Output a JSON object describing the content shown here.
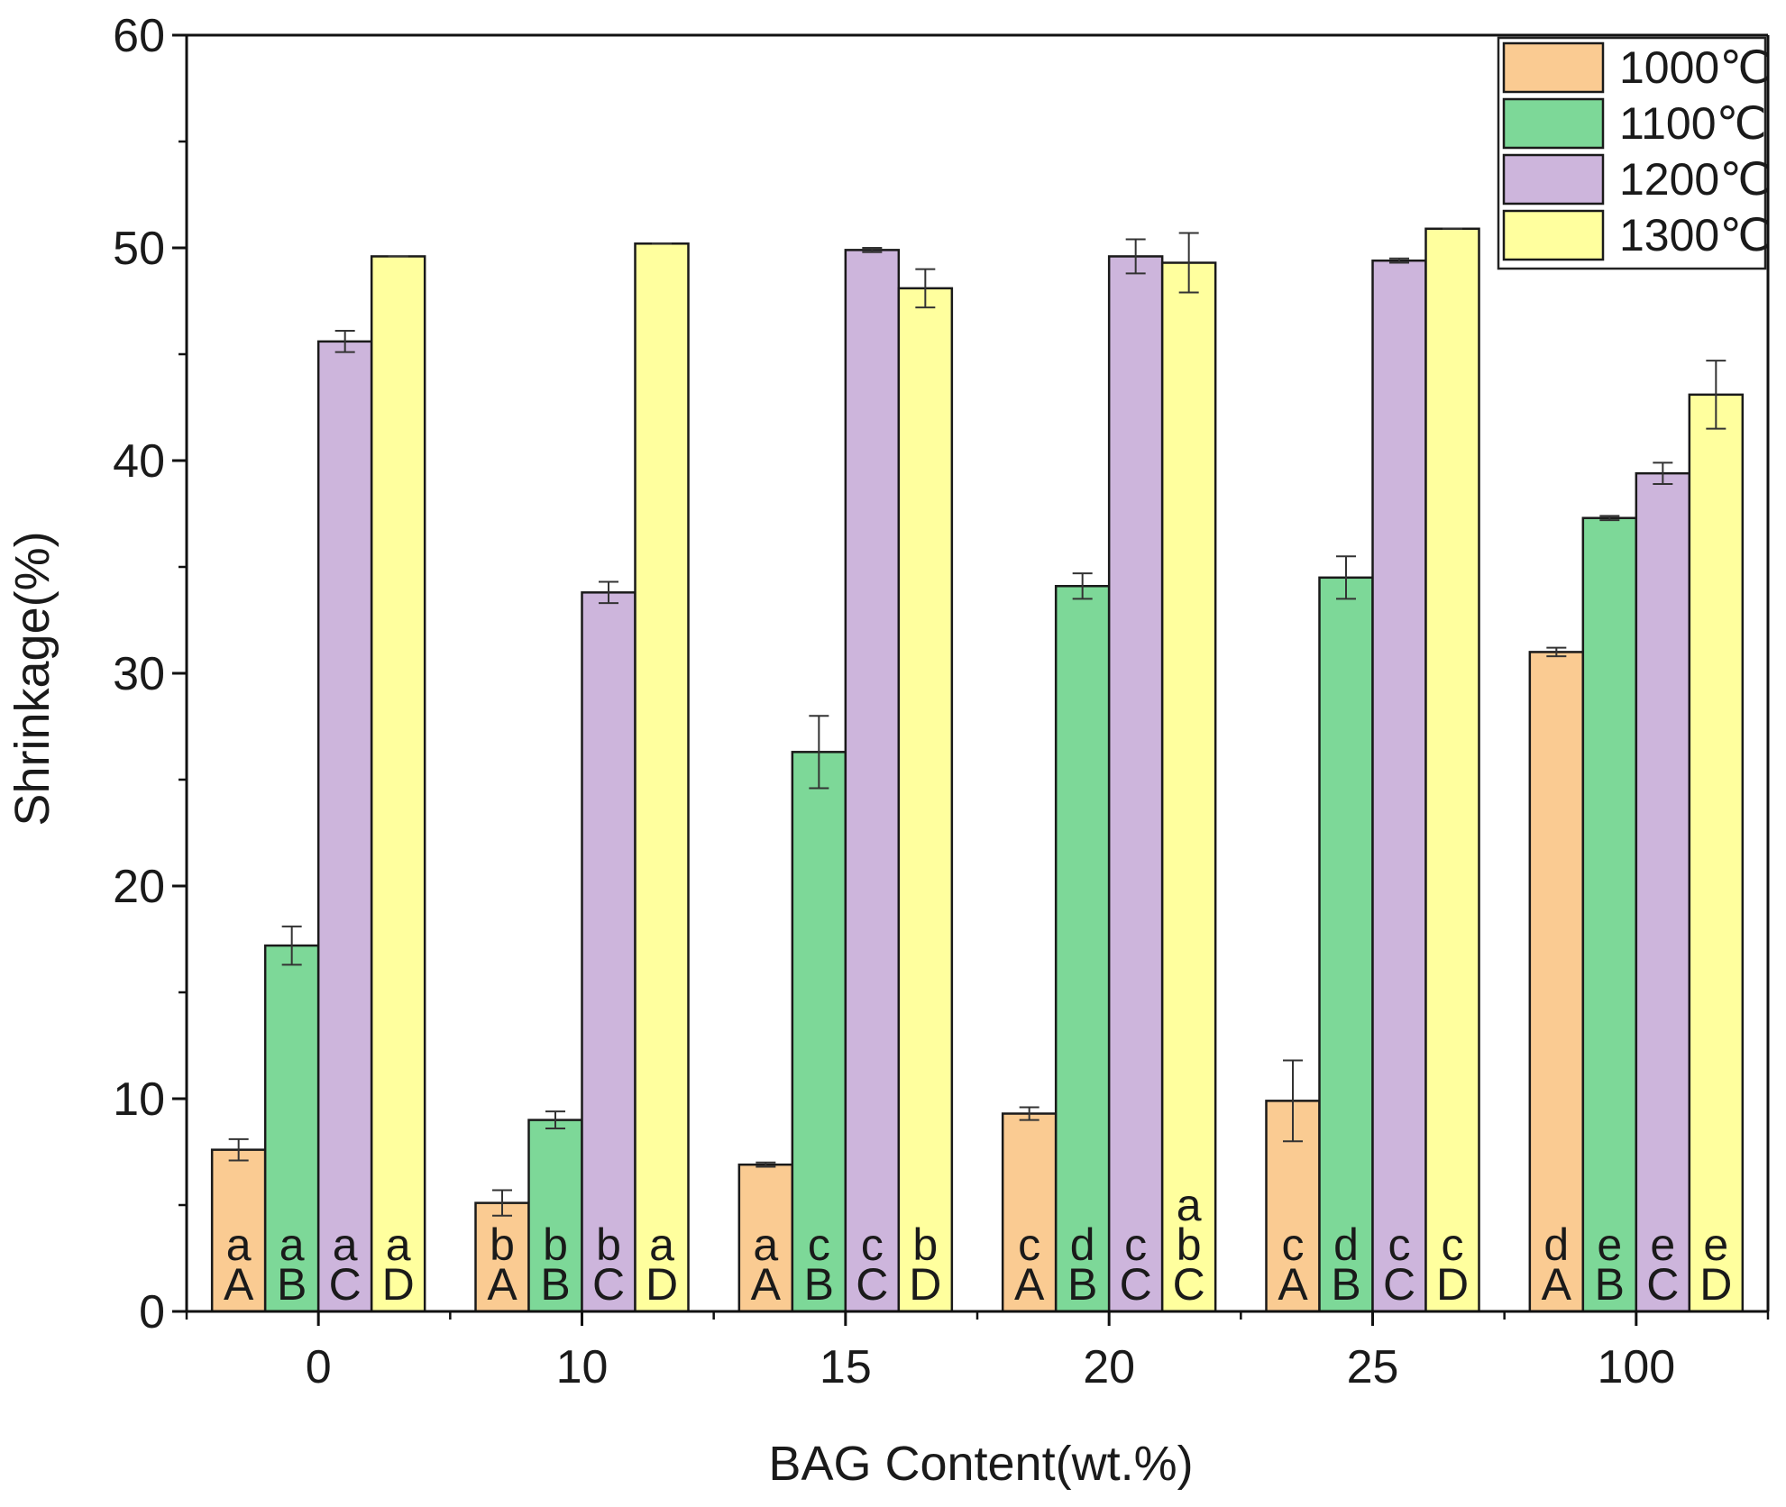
{
  "chart_data": {
    "type": "bar",
    "title": "",
    "xlabel": "BAG Content(wt.%)",
    "ylabel": "Shrinkage(%)",
    "ylim": [
      0,
      60
    ],
    "yticks": [
      "0",
      "10",
      "20",
      "30",
      "40",
      "50",
      "60"
    ],
    "categories": [
      "0",
      "10",
      "15",
      "20",
      "25",
      "100"
    ],
    "legend_position": "top-right",
    "series": [
      {
        "name": "1000℃",
        "color": "#FACB92",
        "values": [
          7.6,
          5.1,
          6.9,
          9.3,
          9.9,
          31.0
        ],
        "errors": [
          0.5,
          0.6,
          0.1,
          0.3,
          1.9,
          0.2
        ],
        "letters": [
          [
            "a",
            "A"
          ],
          [
            "b",
            "A"
          ],
          [
            "a",
            "A"
          ],
          [
            "c",
            "A"
          ],
          [
            "c",
            "A"
          ],
          [
            "d",
            "A"
          ]
        ]
      },
      {
        "name": "1100℃",
        "color": "#7DD898",
        "values": [
          17.2,
          9.0,
          26.3,
          34.1,
          34.5,
          37.3
        ],
        "errors": [
          0.9,
          0.4,
          1.7,
          0.6,
          1.0,
          0.1
        ],
        "letters": [
          [
            "a",
            "B"
          ],
          [
            "b",
            "B"
          ],
          [
            "c",
            "B"
          ],
          [
            "d",
            "B"
          ],
          [
            "d",
            "B"
          ],
          [
            "e",
            "B"
          ]
        ]
      },
      {
        "name": "1200℃",
        "color": "#CDB5DC",
        "values": [
          45.6,
          33.8,
          49.9,
          49.6,
          49.4,
          39.4
        ],
        "errors": [
          0.5,
          0.5,
          0.1,
          0.8,
          0.1,
          0.5
        ],
        "letters": [
          [
            "a",
            "C"
          ],
          [
            "b",
            "C"
          ],
          [
            "c",
            "C"
          ],
          [
            "c",
            "C"
          ],
          [
            "c",
            "C"
          ],
          [
            "e",
            "C"
          ]
        ]
      },
      {
        "name": "1300℃",
        "color": "#FFFF9E",
        "values": [
          49.6,
          50.2,
          48.1,
          49.3,
          50.9,
          43.1
        ],
        "errors": [
          0.0,
          0.0,
          0.9,
          1.4,
          0.0,
          1.6
        ],
        "letters": [
          [
            "a",
            "D"
          ],
          [
            "a",
            "D"
          ],
          [
            "b",
            "D"
          ],
          [
            "a",
            "b",
            "C"
          ],
          [
            "c",
            "D"
          ],
          [
            "e",
            "D"
          ]
        ]
      }
    ]
  }
}
